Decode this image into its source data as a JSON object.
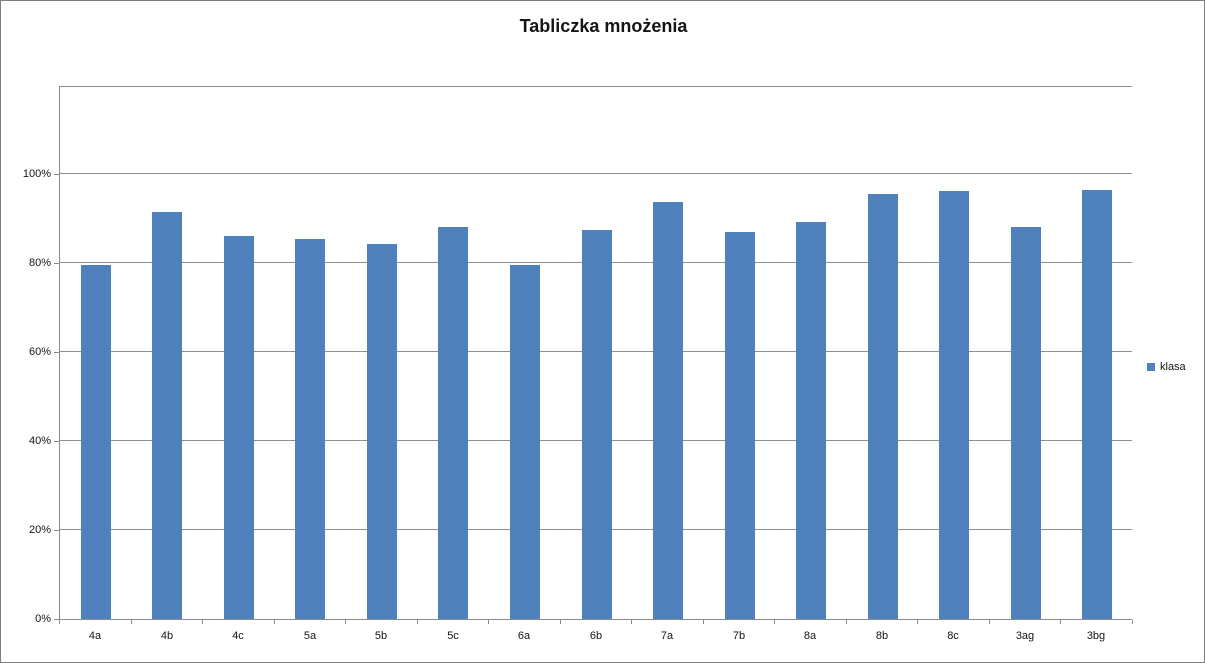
{
  "title": "Tabliczka mnożenia",
  "legend": {
    "label": "klasa"
  },
  "colors": {
    "bar": "#4f81bd",
    "gridline": "#8f8f8f",
    "axis": "#8c8c8c",
    "text": "#151515",
    "background": "#ffffff",
    "window_border": "#7f7f7f"
  },
  "chart_data": {
    "type": "bar",
    "title": "Tabliczka mnożenia",
    "categories": [
      "4a",
      "4b",
      "4c",
      "5a",
      "5b",
      "5c",
      "6a",
      "6b",
      "7a",
      "7b",
      "8a",
      "8b",
      "8c",
      "3ag",
      "3bg"
    ],
    "series": [
      {
        "name": "klasa",
        "values": [
          79.5,
          91.4,
          86.0,
          85.3,
          84.3,
          88.1,
          79.5,
          87.4,
          93.8,
          86.9,
          89.3,
          95.6,
          96.1,
          88.1,
          96.3
        ]
      }
    ],
    "value_unit": "%",
    "xlabel": "",
    "ylabel": "",
    "ylim": [
      0,
      120
    ],
    "yticks": [
      0,
      20,
      40,
      60,
      80,
      100
    ],
    "ytick_labels": [
      "0%",
      "20%",
      "40%",
      "60%",
      "80%",
      "100%"
    ],
    "grid": true,
    "legend_position": "right",
    "bar_gap_ratio": 0.58
  }
}
